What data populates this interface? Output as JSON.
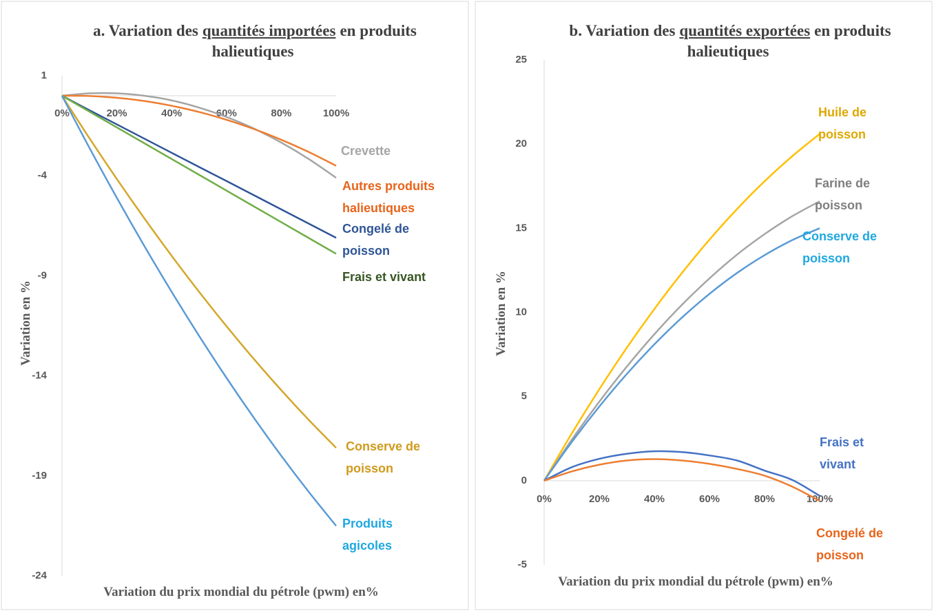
{
  "chart_data": [
    {
      "type": "line",
      "title": [
        "a. Variation des",
        "quantités importées",
        "en produits halieutiques"
      ],
      "title_underlined_part": 1,
      "ylabel": "Variation en %",
      "xlabel": "Variation du prix mondial du pétrole (pwm) en%",
      "x": [
        0,
        10,
        20,
        30,
        40,
        50,
        60,
        70,
        80,
        90,
        100
      ],
      "xlim": [
        0,
        100
      ],
      "xticks": [
        {
          "value": 0,
          "label": "0%"
        },
        {
          "value": 20,
          "label": "20%"
        },
        {
          "value": 40,
          "label": "40%"
        },
        {
          "value": 60,
          "label": "60%"
        },
        {
          "value": 80,
          "label": "80%"
        },
        {
          "value": 100,
          "label": "100%"
        }
      ],
      "ylim": [
        -24,
        1
      ],
      "yticks": [
        1,
        -4,
        -9,
        -14,
        -19,
        -24
      ],
      "series": [
        {
          "name": "Crevette",
          "color": "#a5a5a5",
          "label_color": "#a5a5a5",
          "values": [
            0,
            0.12,
            0.12,
            0.0,
            -0.23,
            -0.59,
            -1.06,
            -1.64,
            -2.34,
            -3.16,
            -4.1
          ]
        },
        {
          "name": "Autres produits halieutiques",
          "color": "#ed7d31",
          "label_color": "#e8641b",
          "values": [
            0,
            -0.01,
            -0.1,
            -0.26,
            -0.5,
            -0.81,
            -1.2,
            -1.66,
            -2.2,
            -2.81,
            -3.5
          ]
        },
        {
          "name": "Congelé de poisson",
          "color": "#2f5597",
          "label_color": "#2f5597",
          "values": [
            0,
            -0.72,
            -1.43,
            -2.14,
            -2.85,
            -3.56,
            -4.26,
            -4.97,
            -5.68,
            -6.39,
            -7.1
          ]
        },
        {
          "name": "Frais et vivant",
          "color": "#70ad47",
          "label_color": "#375623",
          "values": [
            0,
            -0.79,
            -1.58,
            -2.37,
            -3.16,
            -3.95,
            -4.74,
            -5.53,
            -6.32,
            -7.11,
            -7.9
          ]
        },
        {
          "name": "Conserve de poisson",
          "color": "#d4a62a",
          "label_color": "#d09a1c",
          "values": [
            0,
            -2.12,
            -4.16,
            -6.12,
            -8.0,
            -9.8,
            -11.52,
            -13.16,
            -14.72,
            -16.2,
            -17.6
          ]
        },
        {
          "name": "Produits agicoles",
          "color": "#5b9bd5",
          "label_color": "#1fa8e0",
          "values": [
            0,
            -2.6,
            -5.1,
            -7.5,
            -9.8,
            -12.0,
            -14.1,
            -16.1,
            -18.0,
            -19.8,
            -21.5
          ]
        }
      ]
    },
    {
      "type": "line",
      "title": [
        "b. Variation des",
        "quantités exportées",
        "en produits halieutiques"
      ],
      "title_underlined_part": 1,
      "ylabel": "Variation en %",
      "xlabel": "Variation du prix mondial du pétrole (pwm) en%",
      "x": [
        0,
        10,
        20,
        30,
        40,
        50,
        60,
        70,
        80,
        90,
        100
      ],
      "xlim": [
        0,
        100
      ],
      "xticks": [
        {
          "value": 0,
          "label": "0%"
        },
        {
          "value": 20,
          "label": "20%"
        },
        {
          "value": 40,
          "label": "40%"
        },
        {
          "value": 60,
          "label": "60%"
        },
        {
          "value": 80,
          "label": "80%"
        },
        {
          "value": 100,
          "label": "100%"
        }
      ],
      "ylim": [
        -5,
        25
      ],
      "yticks": [
        -5,
        0,
        5,
        10,
        15,
        20,
        25
      ],
      "series": [
        {
          "name": "Huile de poisson",
          "color": "#ffc000",
          "label_color": "#e0a800",
          "values": [
            0,
            2.8,
            5.43,
            7.9,
            10.2,
            12.34,
            14.32,
            16.14,
            17.79,
            19.27,
            20.6
          ]
        },
        {
          "name": "Farine de poisson",
          "color": "#a5a5a5",
          "label_color": "#7f7f7f",
          "values": [
            0,
            2.43,
            4.69,
            6.78,
            8.7,
            10.45,
            12.02,
            13.43,
            14.65,
            15.71,
            16.6
          ]
        },
        {
          "name": "Conserve de poisson",
          "color": "#5b9bd5",
          "label_color": "#1fa8e0",
          "values": [
            0,
            2.29,
            4.4,
            6.34,
            8.1,
            9.69,
            11.1,
            12.34,
            13.4,
            14.29,
            15.0
          ]
        },
        {
          "name": "Frais et vivant",
          "color": "#4472c4",
          "label_color": "#4472c4",
          "values": [
            0,
            0.8,
            1.3,
            1.6,
            1.75,
            1.7,
            1.5,
            1.2,
            0.6,
            0.05,
            -0.9
          ]
        },
        {
          "name": "Congelé de poisson",
          "color": "#ed7d31",
          "label_color": "#e8641b",
          "values": [
            0,
            0.55,
            0.95,
            1.2,
            1.28,
            1.2,
            1.0,
            0.7,
            0.3,
            -0.35,
            -1.2
          ]
        }
      ]
    }
  ]
}
